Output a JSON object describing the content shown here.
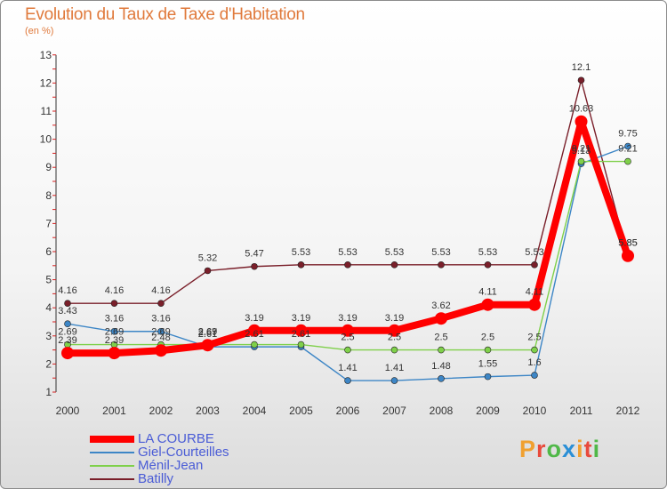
{
  "header": {
    "title": "Evolution du Taux de Taxe d'Habitation",
    "unit": "(en %)"
  },
  "logo": {
    "text": "Proxiti",
    "colors": [
      "#f0a030",
      "#e84a3c",
      "#50b848",
      "#2a8fd6",
      "#f0a030",
      "#e84a3c",
      "#50b848"
    ]
  },
  "chart_data": {
    "type": "line",
    "title": "Evolution du Taux de Taxe d'Habitation",
    "ylabel": "(en %)",
    "xlabel": "",
    "ylim": [
      1,
      13
    ],
    "yticks": [
      1,
      2,
      3,
      4,
      5,
      6,
      7,
      8,
      9,
      10,
      11,
      12,
      13
    ],
    "categories": [
      "2000",
      "2001",
      "2002",
      "2003",
      "2004",
      "2005",
      "2006",
      "2007",
      "2008",
      "2009",
      "2010",
      "2011",
      "2012"
    ],
    "series": [
      {
        "name": "Batilly",
        "color": "#7a1f2a",
        "values": [
          4.16,
          4.16,
          4.16,
          5.32,
          5.47,
          5.53,
          5.53,
          5.53,
          5.53,
          5.53,
          5.53,
          12.1,
          5.85
        ],
        "labels": [
          "4.16",
          "4.16",
          "4.16",
          "5.32",
          "5.47",
          "5.53",
          "5.53",
          "5.53",
          "5.53",
          "5.53",
          "5.53",
          "12.1",
          "5.85"
        ]
      },
      {
        "name": "Giel-Courteilles",
        "color": "#3d86c6",
        "values": [
          3.43,
          3.16,
          3.16,
          2.61,
          2.61,
          2.61,
          1.41,
          1.41,
          1.48,
          1.55,
          1.6,
          9.13,
          9.75
        ],
        "labels": [
          "3.43",
          "3.16",
          "3.16",
          "2.61",
          "2.61",
          "2.61",
          "1.41",
          "1.41",
          "1.48",
          "1.55",
          "1.6",
          "9.13",
          "9.75"
        ]
      },
      {
        "name": "Ménil-Jean",
        "color": "#7fd04a",
        "values": [
          2.69,
          2.69,
          2.69,
          2.69,
          2.69,
          2.69,
          2.5,
          2.5,
          2.5,
          2.5,
          2.5,
          9.21,
          9.21
        ],
        "labels": [
          "2.69",
          "2.69",
          "2.69",
          "2.69",
          "",
          "",
          "2.5",
          "2.5",
          "2.5",
          "2.5",
          "2.5",
          "9.21",
          "9.21"
        ]
      },
      {
        "name": "LA COURBE",
        "color": "#ff0000",
        "emphasis": true,
        "values": [
          2.39,
          2.39,
          2.48,
          2.67,
          3.19,
          3.19,
          3.19,
          3.19,
          3.62,
          4.11,
          4.11,
          10.63,
          5.85
        ],
        "labels": [
          "2.39",
          "2.39",
          "2.48",
          "2.67",
          "3.19",
          "3.19",
          "3.19",
          "3.19",
          "3.62",
          "4.11",
          "4.11",
          "10.63",
          "5.85"
        ]
      }
    ]
  },
  "legend": [
    {
      "label": "LA COURBE",
      "color": "#ff0000",
      "emphasis": true
    },
    {
      "label": "Giel-Courteilles",
      "color": "#3d86c6"
    },
    {
      "label": "Ménil-Jean",
      "color": "#7fd04a"
    },
    {
      "label": "Batilly",
      "color": "#7a1f2a"
    }
  ]
}
